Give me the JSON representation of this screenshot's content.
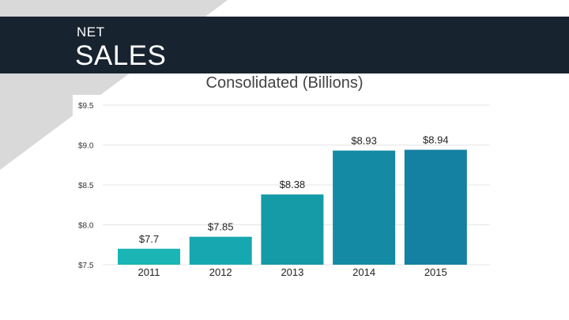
{
  "header": {
    "kicker": "NET",
    "title": "SALES"
  },
  "colors": {
    "header_bg": "#17232f",
    "bg_shape": "#d9d9d9",
    "bar_colors": [
      "#1bb5b5",
      "#17a7b1",
      "#159aa8",
      "#148aa4",
      "#1480a2"
    ]
  },
  "chart_data": {
    "type": "bar",
    "title": "Consolidated (Billions)",
    "categories": [
      "2011",
      "2012",
      "2013",
      "2014",
      "2015"
    ],
    "values": [
      7.7,
      7.85,
      8.38,
      8.93,
      8.94
    ],
    "value_labels": [
      "$7.7",
      "$7.85",
      "$8.38",
      "$8.93",
      "$8.94"
    ],
    "ylim": [
      7.5,
      9.5
    ],
    "yticks": [
      7.5,
      8.0,
      8.5,
      9.0,
      9.5
    ],
    "ytick_labels": [
      "$7.5",
      "$8.0",
      "$8.5",
      "$9.0",
      "$9.5"
    ],
    "grid": true,
    "xlabel": "",
    "ylabel": ""
  }
}
